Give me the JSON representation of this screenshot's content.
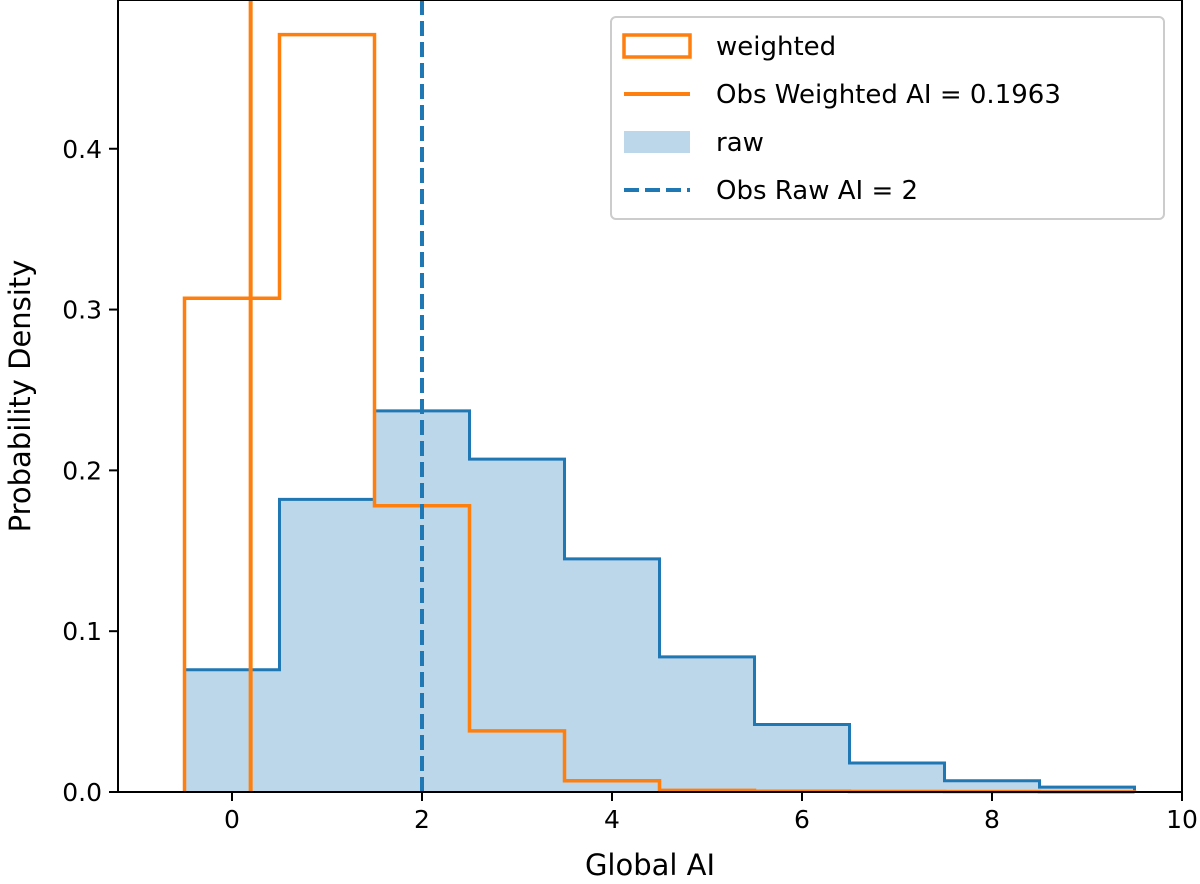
{
  "chart_data": {
    "type": "histogram",
    "title": "",
    "xlabel": "Global AI",
    "ylabel": "Probability Density",
    "xlim": [
      -1.2,
      10
    ],
    "ylim": [
      0,
      0.4925
    ],
    "xticks": [
      0,
      2,
      4,
      6,
      8,
      10
    ],
    "yticks": [
      0.0,
      0.1,
      0.2,
      0.3,
      0.4
    ],
    "xtick_labels": [
      "0",
      "2",
      "4",
      "6",
      "8",
      "10"
    ],
    "ytick_labels": [
      "0.0",
      "0.1",
      "0.2",
      "0.3",
      "0.4"
    ],
    "bin_edges": [
      -0.5,
      0.5,
      1.5,
      2.5,
      3.5,
      4.5,
      5.5,
      6.5,
      7.5,
      8.5,
      9.5
    ],
    "series": [
      {
        "name": "weighted",
        "style": "step-outline",
        "color": "#ff7f0e",
        "values": [
          0.307,
          0.471,
          0.178,
          0.038,
          0.007,
          0.001,
          0.0005,
          0.0003,
          0.0002,
          0.0001
        ]
      },
      {
        "name": "raw",
        "style": "step-filled",
        "color": "#1f77b4",
        "fill": "#bcd6ea",
        "values": [
          0.076,
          0.182,
          0.237,
          0.207,
          0.145,
          0.084,
          0.042,
          0.018,
          0.007,
          0.003
        ]
      }
    ],
    "reference_lines": [
      {
        "name": "Obs Weighted AI = 0.1963",
        "x": 0.1963,
        "color": "#ff7f0e",
        "style": "solid"
      },
      {
        "name": "Obs Raw AI = 2",
        "x": 2,
        "color": "#1f77b4",
        "style": "dashed"
      }
    ],
    "legend": {
      "placement": "top-right",
      "entries": [
        {
          "label": "weighted",
          "kind": "outline-box",
          "color": "#ff7f0e"
        },
        {
          "label": "Obs Weighted AI = 0.1963",
          "kind": "line",
          "color": "#ff7f0e"
        },
        {
          "label": "raw",
          "kind": "filled-box",
          "color": "#bcd6ea"
        },
        {
          "label": "Obs Raw AI = 2",
          "kind": "dashed-line",
          "color": "#1f77b4"
        }
      ]
    },
    "grid": false
  }
}
